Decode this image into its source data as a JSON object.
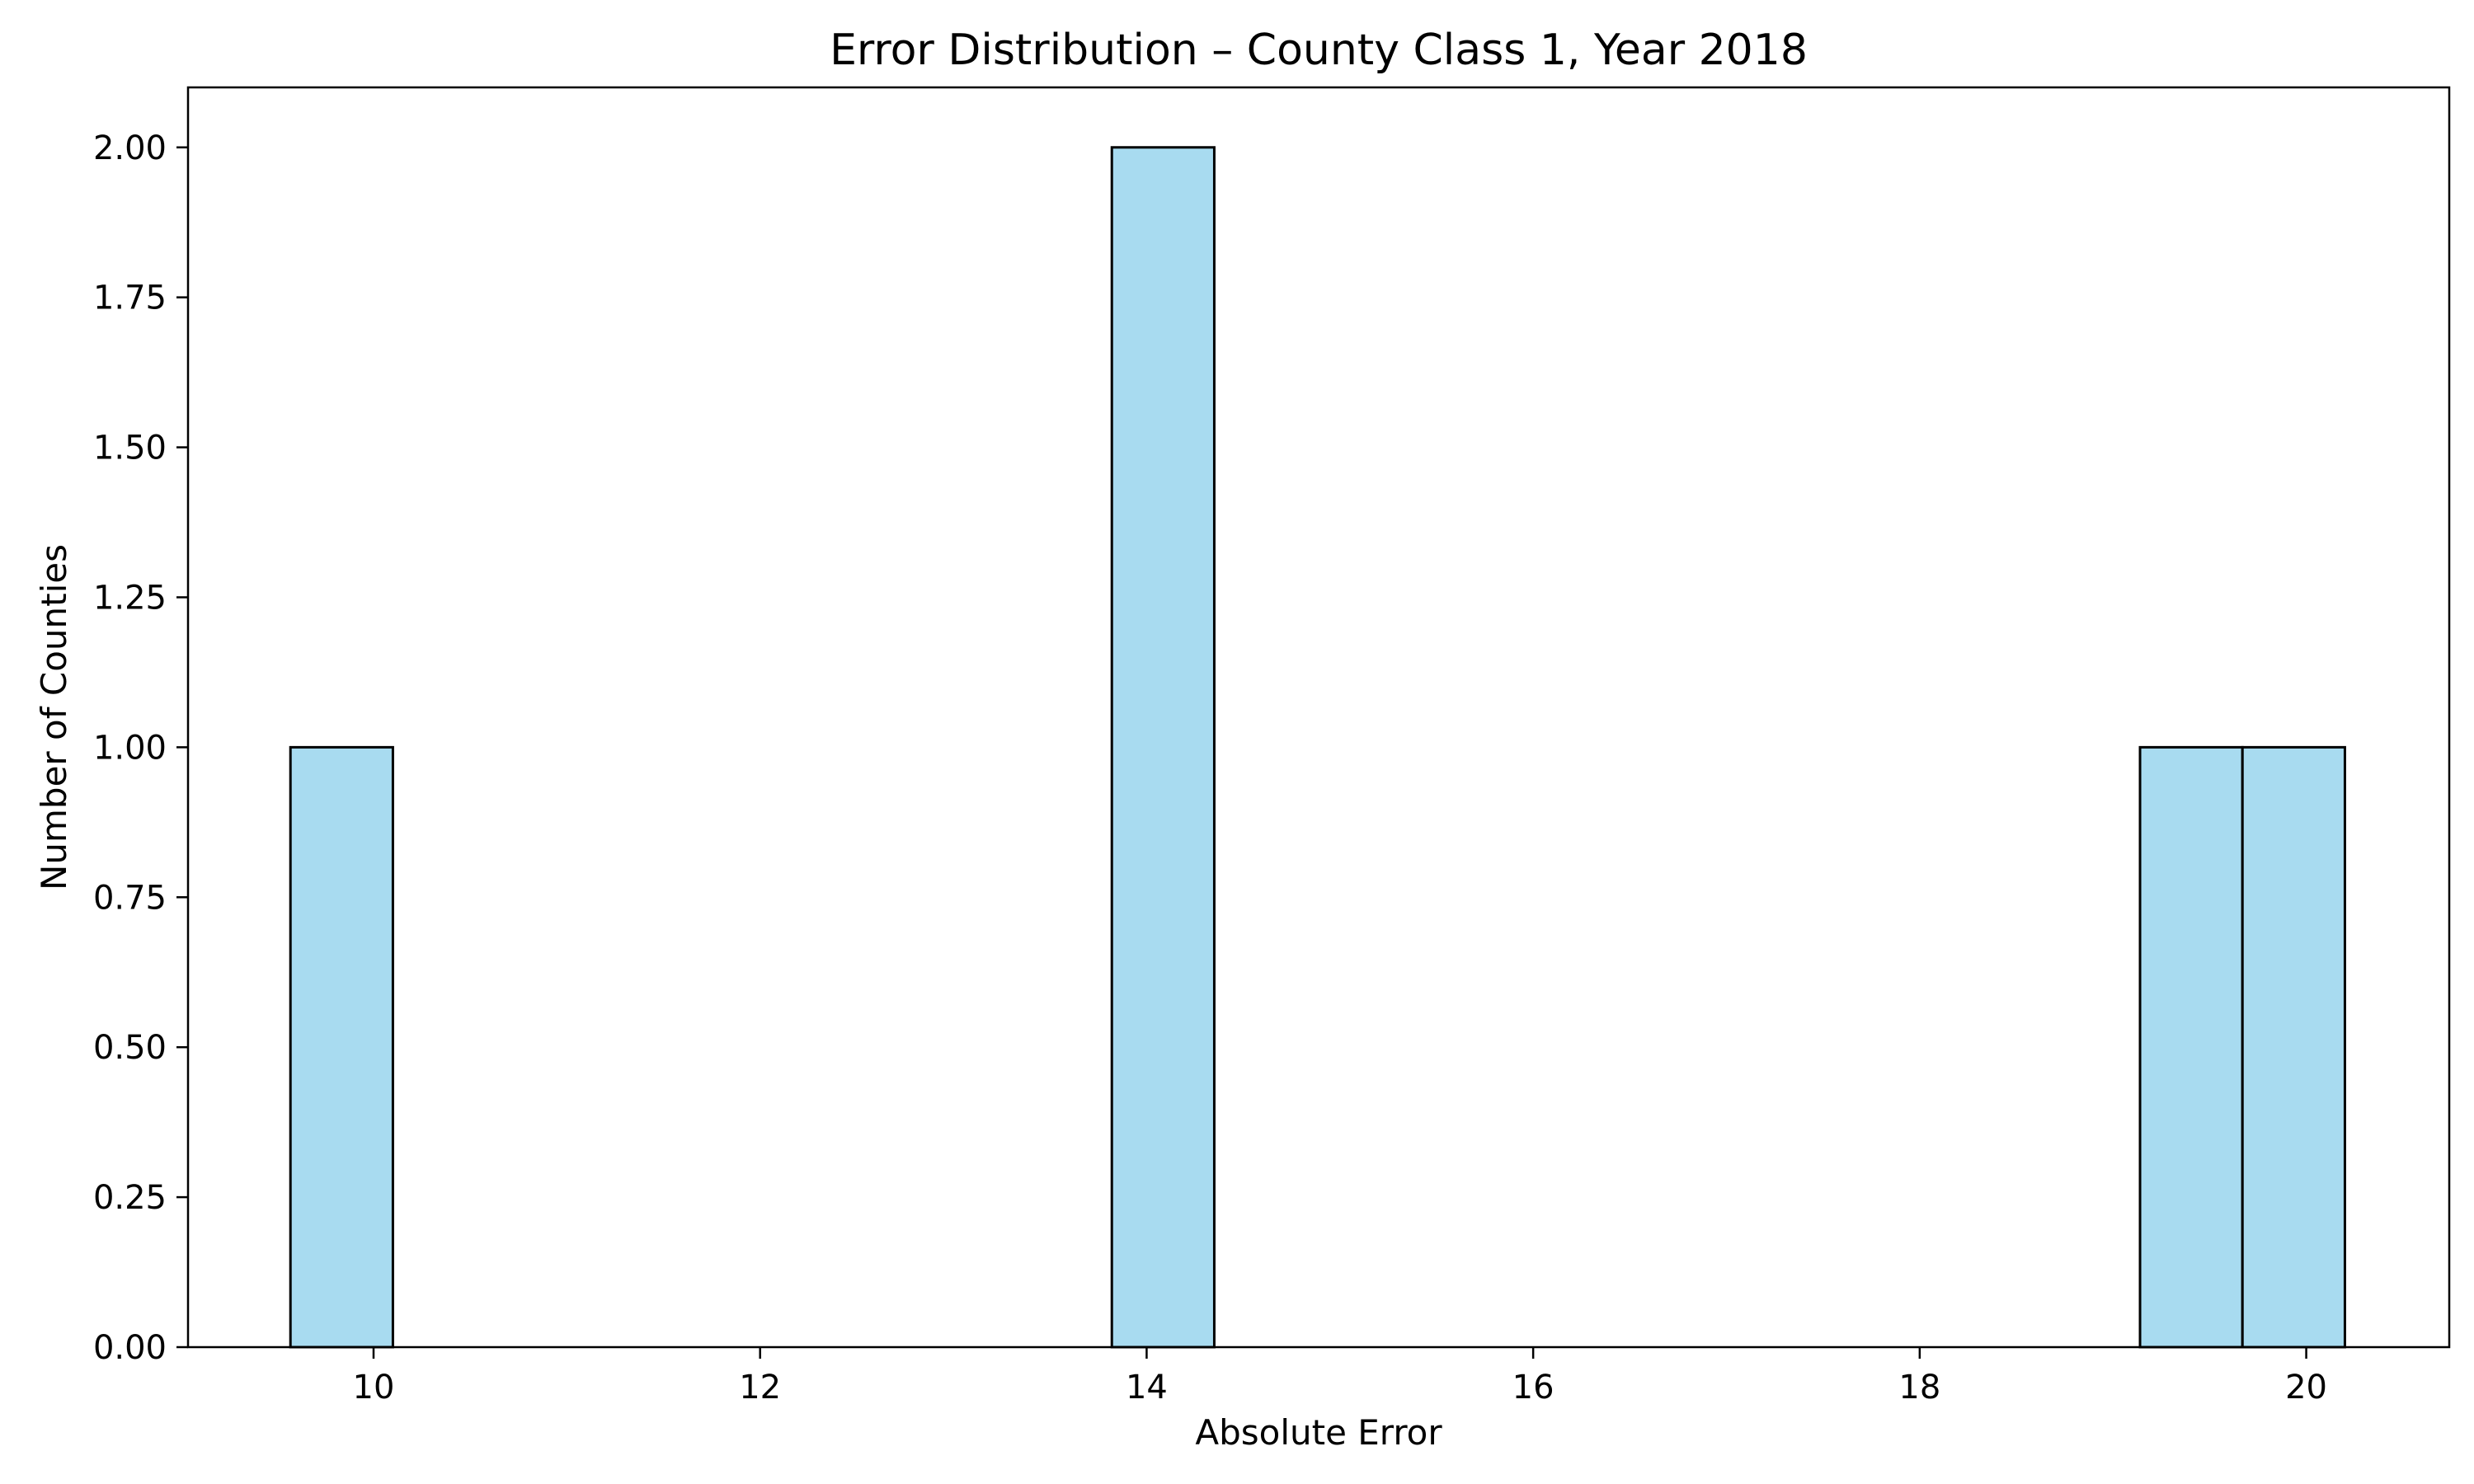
{
  "chart_data": {
    "type": "bar",
    "title": "Error Distribution – County Class 1, Year 2018",
    "xlabel": "Absolute Error",
    "ylabel": "Number of Counties",
    "xlim": [
      9.04,
      20.74
    ],
    "ylim": [
      0,
      2.1
    ],
    "xticks": [
      10,
      12,
      14,
      16,
      18,
      20
    ],
    "xtick_labels": [
      "10",
      "12",
      "14",
      "16",
      "18",
      "20"
    ],
    "yticks": [
      0,
      0.25,
      0.5,
      0.75,
      1.0,
      1.25,
      1.5,
      1.75,
      2.0
    ],
    "ytick_labels": [
      "0.00",
      "0.25",
      "0.50",
      "0.75",
      "1.00",
      "1.25",
      "1.50",
      "1.75",
      "2.00"
    ],
    "bins": [
      {
        "x0": 9.57,
        "x1": 10.1,
        "count": 1
      },
      {
        "x0": 13.82,
        "x1": 14.35,
        "count": 2
      },
      {
        "x0": 19.14,
        "x1": 19.67,
        "count": 1
      },
      {
        "x0": 19.67,
        "x1": 20.2,
        "count": 1
      }
    ],
    "bar_color": "#a8dbf0",
    "edge_color": "#000000",
    "grid": false,
    "legend": "none"
  }
}
